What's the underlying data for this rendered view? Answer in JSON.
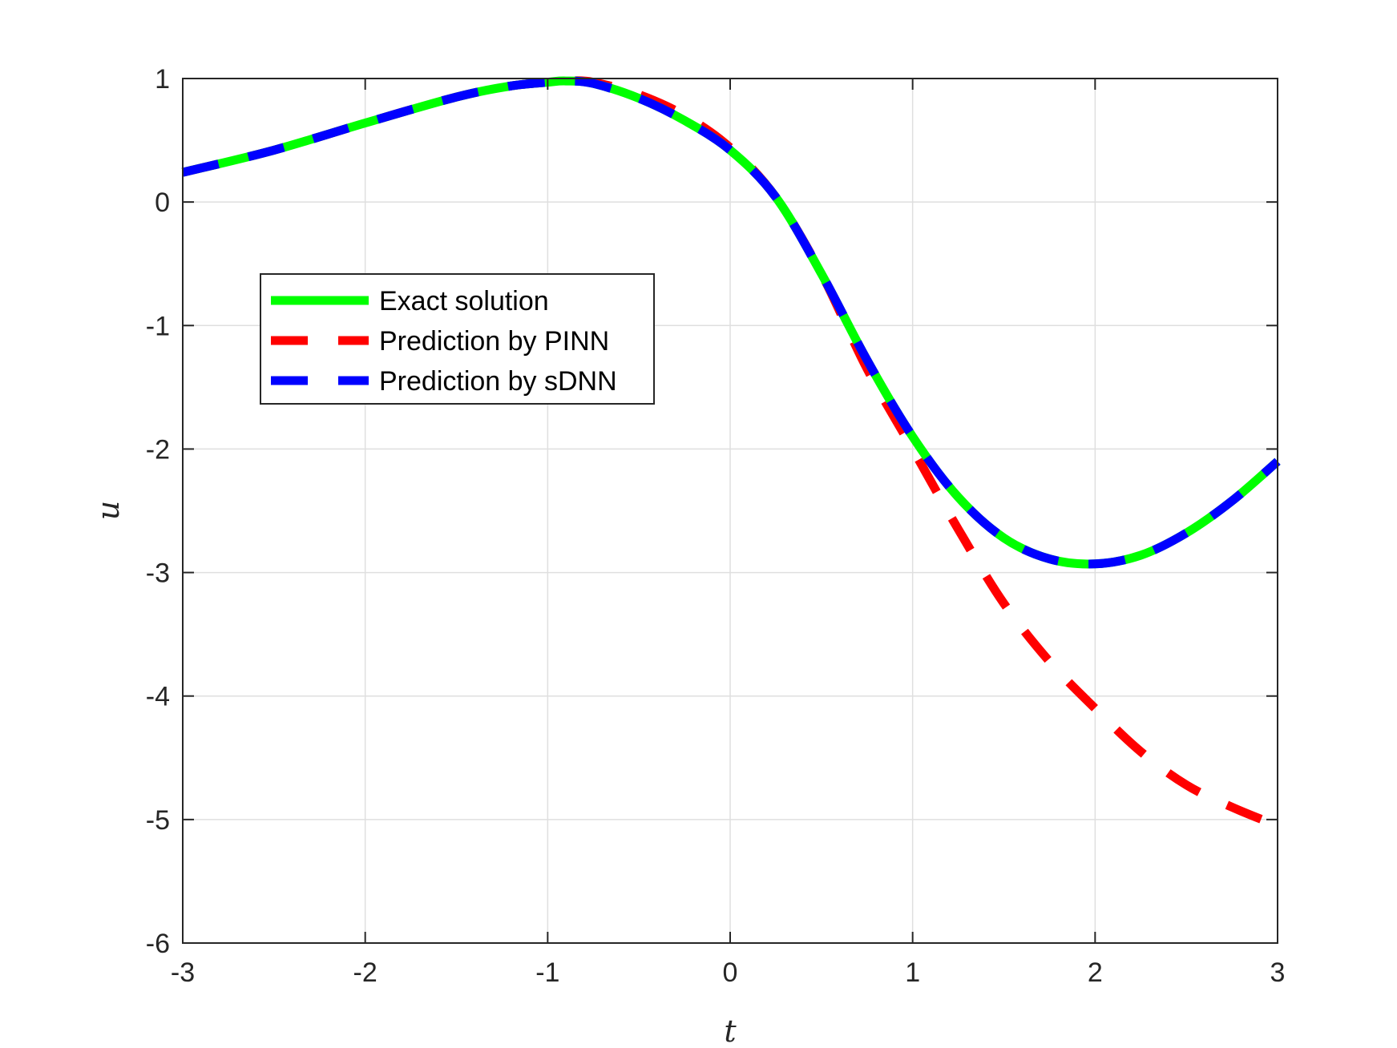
{
  "chart_data": {
    "type": "line",
    "xlabel": "t",
    "ylabel": "u",
    "xlim": [
      -3,
      3
    ],
    "ylim": [
      -6,
      1
    ],
    "xticks": [
      "-3",
      "-2",
      "-1",
      "0",
      "1",
      "2",
      "3"
    ],
    "yticks": [
      "1",
      "0",
      "-1",
      "-2",
      "-3",
      "-4",
      "-5",
      "-6"
    ],
    "grid": true,
    "legend_position": "upper-left",
    "series": [
      {
        "name": "Exact solution",
        "color": "#00ff00",
        "style": "solid",
        "x": [
          -3,
          -2.5,
          -2,
          -1.5,
          -1.2,
          -1,
          -0.9,
          -0.75,
          -0.5,
          -0.25,
          0,
          0.25,
          0.5,
          0.75,
          1,
          1.25,
          1.5,
          1.75,
          2,
          2.25,
          2.5,
          2.75,
          3
        ],
        "y": [
          0.24,
          0.42,
          0.64,
          0.85,
          0.94,
          0.97,
          0.98,
          0.96,
          0.84,
          0.66,
          0.42,
          0.04,
          -0.58,
          -1.28,
          -1.9,
          -2.39,
          -2.72,
          -2.89,
          -2.93,
          -2.86,
          -2.68,
          -2.42,
          -2.1
        ]
      },
      {
        "name": "Prediction by PINN",
        "color": "#ff0000",
        "style": "dashed",
        "x": [
          -3,
          -2.5,
          -2,
          -1.5,
          -1.2,
          -1,
          -0.9,
          -0.75,
          -0.5,
          -0.25,
          0,
          0.25,
          0.5,
          0.75,
          1,
          1.25,
          1.5,
          1.75,
          2,
          2.25,
          2.5,
          2.75,
          3
        ],
        "y": [
          0.24,
          0.42,
          0.64,
          0.85,
          0.94,
          0.97,
          0.98,
          0.97,
          0.87,
          0.7,
          0.44,
          0.04,
          -0.58,
          -1.35,
          -2.0,
          -2.65,
          -3.25,
          -3.72,
          -4.1,
          -4.45,
          -4.72,
          -4.9,
          -5.05
        ]
      },
      {
        "name": "Prediction by sDNN",
        "color": "#0000ff",
        "style": "dashed",
        "x": [
          -3,
          -2.5,
          -2,
          -1.5,
          -1.2,
          -1,
          -0.9,
          -0.75,
          -0.5,
          -0.25,
          0,
          0.25,
          0.5,
          0.75,
          1,
          1.25,
          1.5,
          1.75,
          2,
          2.25,
          2.5,
          2.75,
          3
        ],
        "y": [
          0.24,
          0.42,
          0.64,
          0.85,
          0.94,
          0.97,
          0.98,
          0.96,
          0.84,
          0.66,
          0.42,
          0.04,
          -0.58,
          -1.28,
          -1.9,
          -2.39,
          -2.72,
          -2.89,
          -2.93,
          -2.86,
          -2.68,
          -2.42,
          -2.1
        ]
      }
    ]
  }
}
